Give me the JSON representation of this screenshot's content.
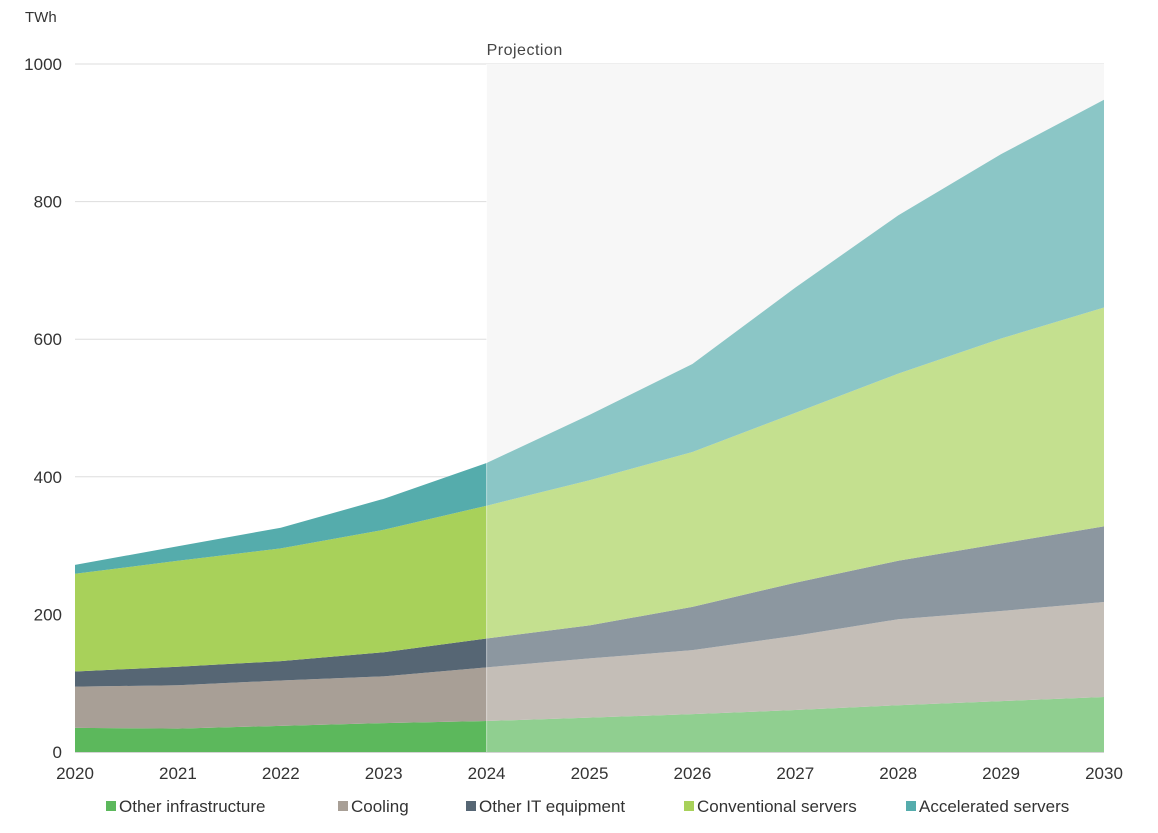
{
  "chart_data": {
    "type": "area",
    "stacked": true,
    "unit_label": "TWh",
    "projection_label": "Projection",
    "projection_start": 2024,
    "x": [
      2020,
      2021,
      2022,
      2023,
      2024,
      2025,
      2026,
      2027,
      2028,
      2029,
      2030
    ],
    "ylim": [
      0,
      1000
    ],
    "yticks": [
      0,
      200,
      400,
      600,
      800,
      1000
    ],
    "grid": true,
    "legend_position": "bottom",
    "series": [
      {
        "name": "Other infrastructure",
        "color": "#5cb85c",
        "values": [
          35,
          34,
          38,
          42,
          45,
          50,
          55,
          61,
          68,
          74,
          80
        ]
      },
      {
        "name": "Cooling",
        "color": "#a89f96",
        "values": [
          60,
          63,
          66,
          68,
          78,
          86,
          93,
          108,
          125,
          131,
          138
        ]
      },
      {
        "name": "Other IT equipment",
        "color": "#566674",
        "values": [
          22,
          27,
          28,
          35,
          42,
          48,
          63,
          77,
          85,
          98,
          110
        ]
      },
      {
        "name": "Conventional servers",
        "color": "#a8d15a",
        "values": [
          142,
          154,
          164,
          178,
          193,
          211,
          225,
          247,
          272,
          298,
          318
        ]
      },
      {
        "name": "Accelerated servers",
        "color": "#55acac",
        "values": [
          13,
          21,
          30,
          45,
          62,
          95,
          128,
          182,
          230,
          268,
          302
        ]
      }
    ]
  }
}
